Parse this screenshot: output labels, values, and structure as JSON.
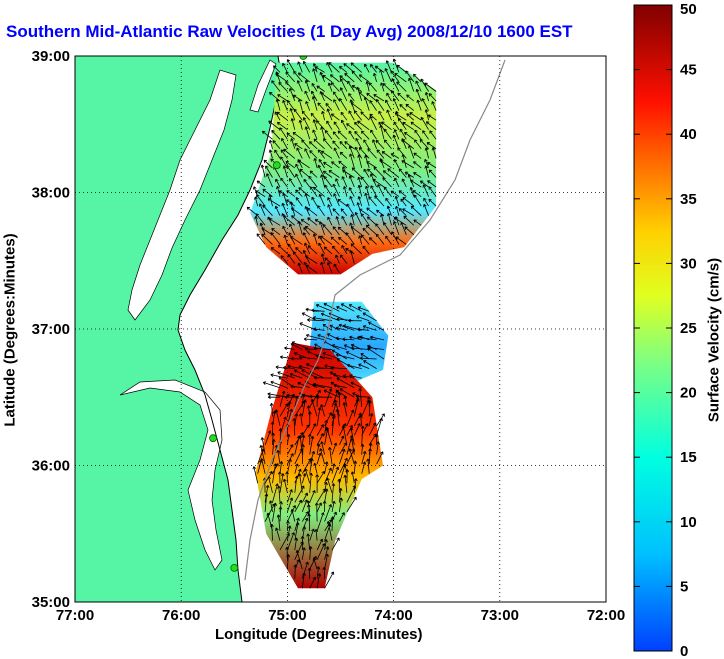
{
  "title": "Southern Mid-Atlantic Raw Velocities (1 Day Avg) 2008/12/10 1600 EST",
  "xlabel": "Longitude (Degrees:Minutes)",
  "ylabel": "Latitude (Degrees:Minutes)",
  "colorbar": {
    "label": "Surface Velocity (cm/s)",
    "min": 0,
    "max": 50,
    "ticks": [
      "0",
      "5",
      "10",
      "15",
      "20",
      "25",
      "30",
      "35",
      "40",
      "45",
      "50"
    ]
  },
  "map": {
    "x_ticks": [
      "77:00",
      "76:00",
      "75:00",
      "74:00",
      "73:00",
      "72:00"
    ],
    "y_ticks": [
      "39:00",
      "38:00",
      "37:00",
      "36:00",
      "35:00"
    ],
    "lon_range": [
      -77,
      -72
    ],
    "lat_range": [
      35,
      39
    ],
    "land_color": "#55f5a5",
    "station_color": "#22dd22",
    "stations": [
      {
        "lon": -74.85,
        "lat": 39.0
      },
      {
        "lon": -75.1,
        "lat": 38.2
      },
      {
        "lon": -75.7,
        "lat": 36.2
      },
      {
        "lon": -75.5,
        "lat": 35.25
      }
    ],
    "patches": [
      {
        "name": "north",
        "poly": [
          [
            -75.1,
            38.95
          ],
          [
            -74.0,
            38.95
          ],
          [
            -73.6,
            38.75
          ],
          [
            -73.6,
            37.9
          ],
          [
            -73.9,
            37.6
          ],
          [
            -74.2,
            37.55
          ],
          [
            -74.5,
            37.4
          ],
          [
            -74.9,
            37.4
          ],
          [
            -75.2,
            37.6
          ],
          [
            -75.35,
            37.85
          ],
          [
            -75.15,
            38.3
          ],
          [
            -75.1,
            38.95
          ]
        ],
        "stops": [
          [
            0,
            "#55f5a5"
          ],
          [
            0.25,
            "#c8f048"
          ],
          [
            0.5,
            "#80ee80"
          ],
          [
            0.7,
            "#55e8ff"
          ],
          [
            0.85,
            "#ff6a10"
          ],
          [
            1,
            "#cc0000"
          ]
        ]
      },
      {
        "name": "mid",
        "poly": [
          [
            -74.75,
            37.2
          ],
          [
            -74.3,
            37.2
          ],
          [
            -74.05,
            36.95
          ],
          [
            -74.1,
            36.7
          ],
          [
            -74.55,
            36.55
          ],
          [
            -74.8,
            36.75
          ],
          [
            -74.75,
            37.2
          ]
        ],
        "stops": [
          [
            0,
            "#55e8ff"
          ],
          [
            0.5,
            "#2aa8ff"
          ],
          [
            1,
            "#55e8ff"
          ]
        ]
      },
      {
        "name": "south",
        "poly": [
          [
            -74.95,
            36.9
          ],
          [
            -74.6,
            36.85
          ],
          [
            -74.2,
            36.5
          ],
          [
            -74.1,
            36.0
          ],
          [
            -74.3,
            35.9
          ],
          [
            -74.55,
            35.45
          ],
          [
            -74.65,
            35.1
          ],
          [
            -74.9,
            35.1
          ],
          [
            -75.2,
            35.5
          ],
          [
            -75.3,
            35.95
          ],
          [
            -75.15,
            36.4
          ],
          [
            -74.95,
            36.9
          ]
        ],
        "stops": [
          [
            0,
            "#cc0000"
          ],
          [
            0.35,
            "#ff3300"
          ],
          [
            0.55,
            "#ffbb00"
          ],
          [
            0.7,
            "#80ee80"
          ],
          [
            1,
            "#b00000"
          ]
        ]
      }
    ]
  }
}
